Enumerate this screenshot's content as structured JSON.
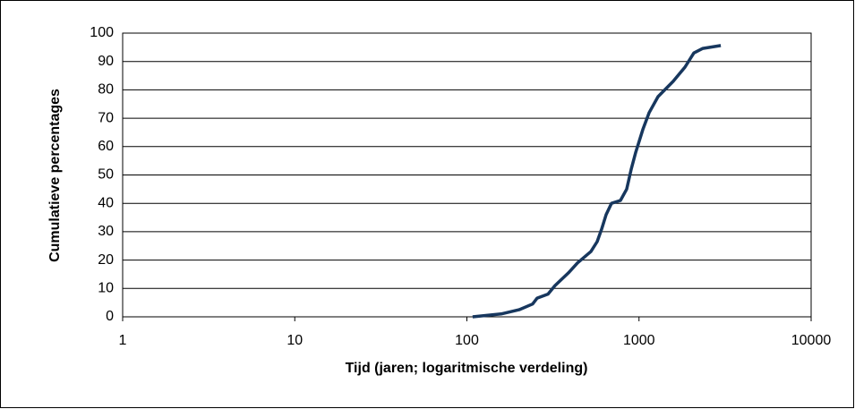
{
  "chart_data": {
    "type": "line",
    "y_label": "Cumulatieve percentages",
    "x_label": "Tijd (jaren; logaritmische verdeling)",
    "x": [
      108,
      158,
      201,
      241,
      256,
      296,
      325,
      389,
      439,
      525,
      571,
      607,
      644,
      692,
      780,
      848,
      900,
      957,
      1052,
      1145,
      1290,
      1580,
      1850,
      2083,
      2348,
      2985
    ],
    "series": [
      {
        "color": "#17375e",
        "values": [
          0,
          1,
          2.5,
          4.5,
          6.6,
          8,
          11,
          15.5,
          19,
          23,
          26.5,
          31,
          36,
          40,
          41,
          45,
          52,
          58,
          66,
          72,
          77.6,
          83,
          88,
          93,
          94.6,
          95.6
        ]
      }
    ],
    "xlim": [
      1,
      10000
    ],
    "xticks": [
      1,
      10,
      100,
      1000,
      10000
    ],
    "xscale": "log",
    "ylim": [
      0,
      100
    ],
    "yticks": [
      0,
      10,
      20,
      30,
      40,
      50,
      60,
      70,
      80,
      90,
      100
    ],
    "grid": true
  }
}
